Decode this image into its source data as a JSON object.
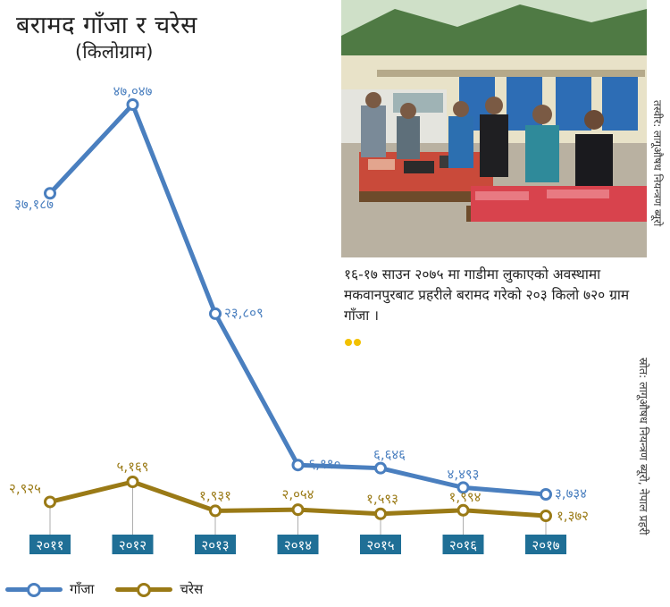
{
  "title": "बरामद गाँजा र चरेस",
  "subtitle": "(किलोग्राम)",
  "photo": {
    "credit": "तस्वीर: लागूऔषध नियन्त्रण ब्यूरो"
  },
  "caption": "१६-१७ साउन २०७५ मा गाडीमा लुकाएको अवस्थामा मकवानपुरबाट प्रहरीले बरामद गरेको २०३ किलो ७२० ग्राम गाँजा ।",
  "source": "स्रोत: लागूऔषध नियन्त्रण ब्यूरो, नेपाल प्रहरी",
  "colors": {
    "ganja": "#4a7fbf",
    "charas": "#9a7a16",
    "year_box": "#1f6f96",
    "caption_dots": "#f2c100"
  },
  "chart_data": {
    "type": "line",
    "categories": [
      "२०११",
      "२०१२",
      "२०१३",
      "२०१४",
      "२०१५",
      "२०१६",
      "२०१७"
    ],
    "series": [
      {
        "name": "गाँजा",
        "values": [
          37187,
          47047,
          23809,
          6990,
          6646,
          4493,
          3734
        ],
        "labels": [
          "३७,१८७",
          "४७,०४७",
          "२३,८०९",
          "६,९९०",
          "६,६४६",
          "४,४९३",
          "३,७३४"
        ]
      },
      {
        "name": "चरेस",
        "values": [
          2925,
          5169,
          1931,
          2054,
          1593,
          1994,
          1372
        ],
        "labels": [
          "२,९२५",
          "५,१६९",
          "१,९३१",
          "२,०५४",
          "१,५९३",
          "१,९९४",
          "१,३७२"
        ]
      }
    ],
    "legend": [
      "गाँजा",
      "चरेस"
    ],
    "legend_position": "bottom-left",
    "grid": false
  }
}
